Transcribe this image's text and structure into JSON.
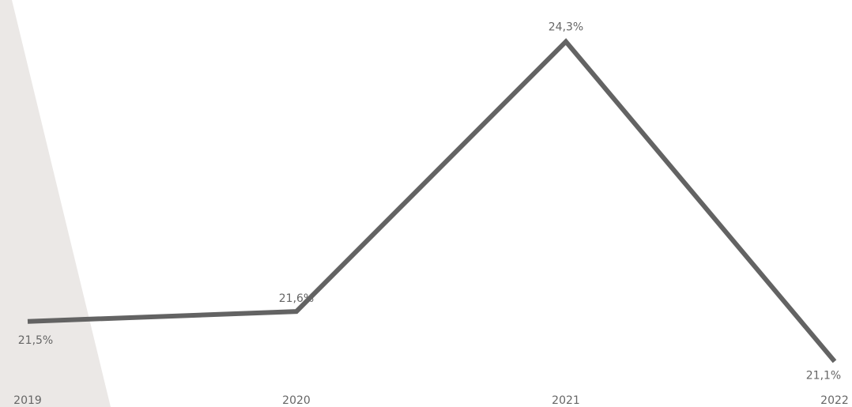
{
  "chart_data": {
    "type": "line",
    "categories": [
      "2019",
      "2020",
      "2021",
      "2022"
    ],
    "values": [
      21.5,
      21.6,
      24.3,
      21.1
    ],
    "value_labels": [
      "21,5%",
      "21,6%",
      "24,3%",
      "21,1%"
    ],
    "title": "",
    "xlabel": "",
    "ylabel": "",
    "ylim": [
      21.0,
      24.4
    ],
    "grid": false,
    "legend": "none",
    "line_color": "#636363",
    "label_color": "#666666",
    "background_band_color": "#ebe8e6"
  }
}
